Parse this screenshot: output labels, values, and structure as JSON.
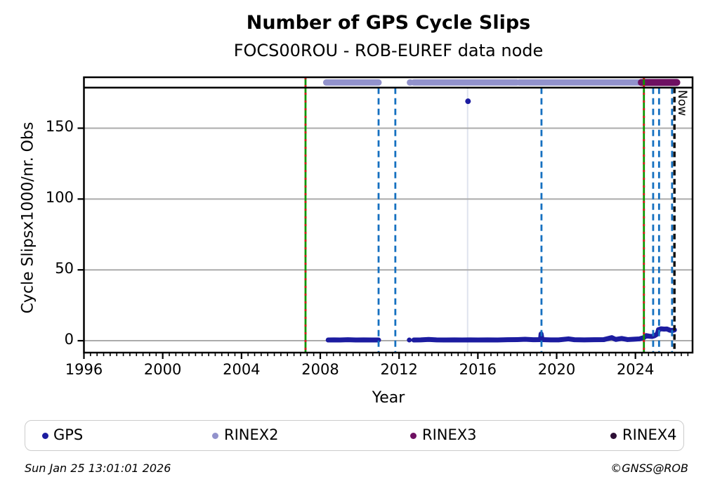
{
  "page": {
    "title": "Number of GPS Cycle Slips",
    "subtitle": "FOCS00ROU - ROB-EUREF data node"
  },
  "colors": {
    "gps": "#1c1ca0",
    "rinex2": "#9292cc",
    "rinex3": "#6e1062",
    "rinex4": "#2d0e35",
    "event_blue": "#1570c0",
    "event_green": "#0f9400",
    "event_red": "#d01818",
    "now": "#111111",
    "grid": "#ababab",
    "faint_line": "#dfe3ee",
    "frame": "#000000",
    "legend_border": "#cccccc"
  },
  "chart_data": {
    "type": "line",
    "title": "Number of GPS Cycle Slips",
    "subtitle": "FOCS00ROU - ROB-EUREF data node",
    "xlabel": "Year",
    "ylabel": "Cycle Slipsx1000/nr. Obs",
    "x_range": [
      1996,
      2026.9
    ],
    "y_range": [
      -8.4,
      178.6
    ],
    "x_major_ticks": [
      1996,
      2000,
      2004,
      2008,
      2012,
      2016,
      2020,
      2024
    ],
    "x_minor_tick_interval_years": 0.3333,
    "y_ticks": [
      0,
      50,
      100,
      150
    ],
    "grid": "horizontal-only",
    "now_label": "Now",
    "series": [
      {
        "name": "GPS",
        "color_key": "gps",
        "segments": [
          [
            [
              2008.4,
              0.5
            ],
            [
              2008.7,
              0.6
            ],
            [
              2009.0,
              0.5
            ],
            [
              2009.4,
              0.7
            ],
            [
              2009.8,
              0.5
            ],
            [
              2010.2,
              0.6
            ],
            [
              2010.6,
              0.5
            ],
            [
              2010.96,
              0.5
            ]
          ],
          [
            [
              2012.52,
              0.5
            ]
          ],
          [
            [
              2012.75,
              0.5
            ],
            [
              2013.1,
              0.6
            ],
            [
              2013.5,
              0.9
            ],
            [
              2013.9,
              0.6
            ],
            [
              2014.3,
              0.5
            ],
            [
              2014.8,
              0.6
            ],
            [
              2015.2,
              0.5
            ],
            [
              2015.6,
              0.6
            ],
            [
              2016.0,
              0.5
            ],
            [
              2016.5,
              0.6
            ],
            [
              2017.0,
              0.5
            ],
            [
              2017.5,
              0.7
            ],
            [
              2018.0,
              0.8
            ],
            [
              2018.4,
              1.0
            ],
            [
              2018.8,
              0.7
            ],
            [
              2019.18,
              0.8
            ],
            [
              2019.21,
              4.8
            ],
            [
              2019.26,
              0.8
            ],
            [
              2019.7,
              0.6
            ],
            [
              2020.1,
              0.6
            ],
            [
              2020.6,
              1.3
            ],
            [
              2020.9,
              0.7
            ],
            [
              2021.4,
              0.6
            ],
            [
              2021.9,
              0.7
            ],
            [
              2022.4,
              0.8
            ],
            [
              2022.8,
              2.2
            ],
            [
              2023.0,
              0.9
            ],
            [
              2023.3,
              1.6
            ],
            [
              2023.6,
              0.8
            ],
            [
              2023.95,
              1.1
            ],
            [
              2024.2,
              1.3
            ],
            [
              2024.43,
              2.2
            ],
            [
              2024.55,
              3.6
            ],
            [
              2024.7,
              3.2
            ],
            [
              2024.85,
              3.0
            ],
            [
              2024.95,
              3.4
            ],
            [
              2025.05,
              4.2
            ],
            [
              2025.12,
              5.0
            ],
            [
              2025.17,
              7.8
            ],
            [
              2025.3,
              8.4
            ],
            [
              2025.45,
              8.2
            ],
            [
              2025.6,
              8.3
            ],
            [
              2025.75,
              7.4
            ],
            [
              2025.88,
              7.2
            ],
            [
              2025.98,
              7.6
            ]
          ]
        ],
        "outliers": [
          [
            2015.5,
            169
          ]
        ]
      }
    ],
    "availability_bands": [
      {
        "name": "RINEX2",
        "color_key": "rinex2",
        "segments": [
          [
            2008.3,
            2010.96
          ],
          [
            2012.55,
            2012.58
          ],
          [
            2012.75,
            2017.97
          ],
          [
            2018.1,
            2024.45
          ]
        ]
      },
      {
        "name": "RINEX3",
        "color_key": "rinex3",
        "segments": [
          [
            2024.3,
            2026.1
          ]
        ]
      },
      {
        "name": "RINEX4",
        "color_key": "rinex4",
        "segments": []
      }
    ],
    "vlines": [
      {
        "year": 2007.25,
        "style": "green_red_dashed"
      },
      {
        "year": 2010.96,
        "style": "blue_dashed"
      },
      {
        "year": 2011.81,
        "style": "blue_dashed"
      },
      {
        "year": 2015.48,
        "style": "faint"
      },
      {
        "year": 2019.23,
        "style": "blue_dashed"
      },
      {
        "year": 2024.43,
        "style": "green_red_dashed"
      },
      {
        "year": 2024.9,
        "style": "blue_dashed"
      },
      {
        "year": 2025.2,
        "style": "blue_dashed"
      },
      {
        "year": 2025.86,
        "style": "blue_dashed"
      },
      {
        "year": 2025.98,
        "style": "now_black_dashed"
      }
    ]
  },
  "legend": {
    "items": [
      {
        "label": "GPS",
        "color_key": "gps"
      },
      {
        "label": "RINEX2",
        "color_key": "rinex2"
      },
      {
        "label": "RINEX3",
        "color_key": "rinex3"
      },
      {
        "label": "RINEX4",
        "color_key": "rinex4"
      }
    ]
  },
  "footer": {
    "timestamp": "Sun Jan 25 13:01:01 2026",
    "credit": "©GNSS@ROB"
  }
}
